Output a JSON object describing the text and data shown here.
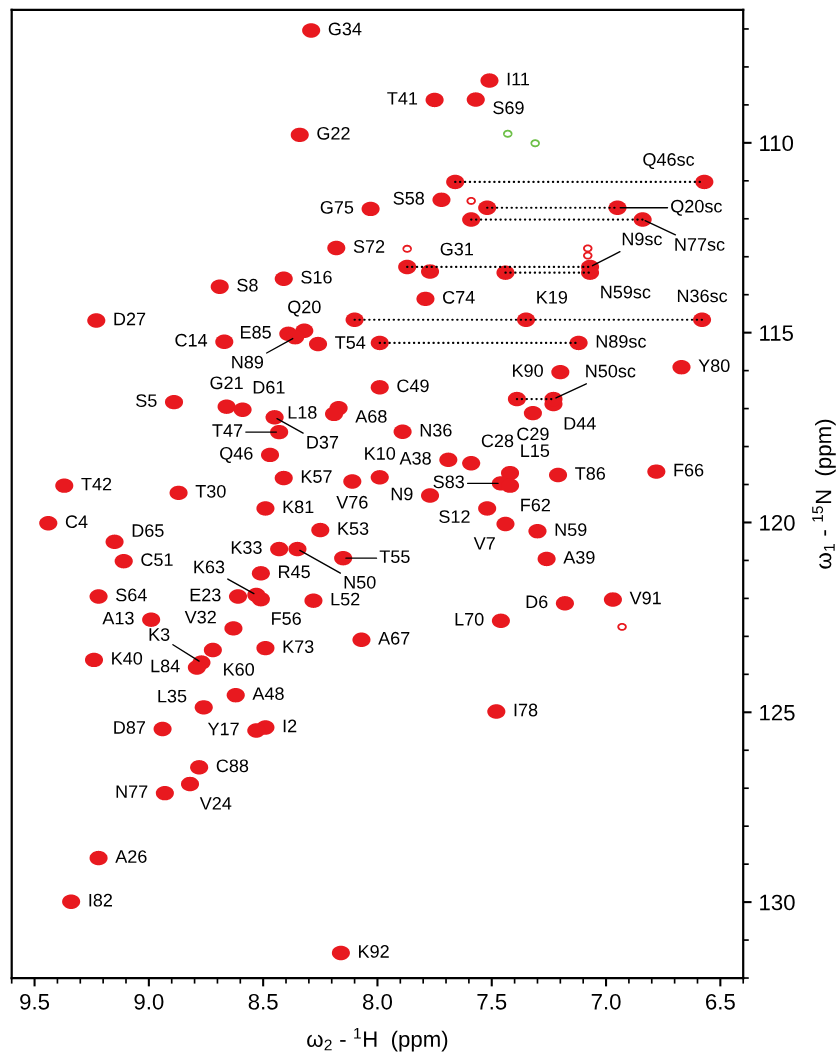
{
  "chart_data": {
    "type": "scatter",
    "xlabel": "ω$_{2}$ - $^{1}$H  (ppm)",
    "ylabel": "ω$_{1}$ - $^{15}$N  (ppm)",
    "xlim": [
      9.6,
      6.4
    ],
    "ylim": [
      132.0,
      106.5
    ],
    "xticks": [
      9.5,
      {
        "value": 9,
        "label": "9.0"
      },
      8.5,
      {
        "value": 8,
        "label": "8.0"
      },
      7.5,
      {
        "value": 7,
        "label": "7.0"
      },
      6.5
    ],
    "yticks": [
      110,
      115,
      120,
      125,
      130
    ],
    "marker": "circle",
    "series": [
      {
        "color": "#e8191f",
        "x": [
          8.29,
          7.51,
          7.75,
          7.57,
          8.34,
          7.72,
          8.03,
          8.18,
          7.77,
          8.69,
          8.41,
          7.79,
          9.23,
          7.35,
          8.39,
          8.32,
          8.36,
          8.26,
          8.67,
          6.67,
          7.2,
          7.99,
          8.89,
          8.66,
          8.59,
          8.45,
          8.43,
          8.17,
          8.19,
          7.89,
          7.23,
          7.32,
          8.47,
          7.69,
          7.59,
          7.42,
          7.46,
          7.42,
          7.21,
          6.78,
          9.37,
          8.41,
          8.11,
          7.99,
          8.87,
          7.77,
          8.49,
          7.52,
          9.44,
          7.44,
          7.3,
          8.25,
          9.15,
          8.43,
          8.35,
          9.11,
          8.15,
          7.26,
          8.51,
          8.53,
          8.61,
          8.51,
          9.22,
          8.28,
          7.18,
          6.97,
          8.99,
          8.63,
          7.46,
          8.07,
          8.49,
          8.72,
          8.77,
          8.79,
          9.24,
          8.62,
          8.76,
          7.48,
          8.94,
          8.49,
          8.53,
          8.78,
          8.82,
          8.93,
          9.22,
          9.34,
          8.16,
          7.66,
          6.57,
          7.52,
          6.95,
          7.59,
          6.84,
          7.87,
          7.07,
          7.44,
          7.07,
          8.1,
          6.58,
          7.99,
          7.12,
          7.39,
          7.23
        ],
        "values": [
          107.04,
          108.36,
          108.87,
          108.86,
          109.79,
          111.5,
          111.74,
          112.77,
          113.39,
          113.79,
          113.58,
          114.11,
          114.68,
          114.66,
          115.03,
          114.95,
          115.12,
          115.3,
          115.24,
          115.91,
          116.04,
          116.44,
          116.83,
          116.95,
          117.03,
          117.23,
          117.62,
          116.99,
          117.14,
          117.61,
          116.88,
          117.12,
          118.22,
          118.35,
          118.44,
          118.7,
          118.97,
          119.03,
          118.75,
          118.66,
          119.03,
          118.83,
          118.92,
          118.81,
          119.22,
          119.29,
          119.63,
          119.63,
          120.02,
          120.04,
          120.23,
          120.2,
          120.51,
          120.7,
          120.7,
          121.02,
          120.94,
          120.96,
          121.34,
          121.91,
          121.95,
          122.02,
          121.95,
          122.06,
          122.13,
          122.03,
          122.56,
          122.79,
          122.59,
          123.09,
          123.31,
          123.36,
          123.69,
          123.82,
          123.62,
          124.55,
          124.87,
          124.98,
          125.44,
          125.4,
          125.48,
          126.45,
          126.89,
          127.13,
          128.84,
          129.99,
          131.34,
          111.03,
          111.03,
          111.71,
          111.71,
          112.02,
          112.02,
          113.27,
          113.27,
          113.42,
          113.42,
          114.66,
          114.66,
          115.27,
          115.27,
          116.75,
          116.75
        ]
      },
      {
        "color": "#e8191f",
        "x": [
          7.87,
          7.59,
          7.08,
          7.08,
          6.93
        ],
        "values": [
          112.79,
          111.53,
          112.78,
          112.97,
          122.75
        ]
      },
      {
        "color": "#6cbf46",
        "x": [
          7.43,
          7.31
        ],
        "values": [
          109.76,
          110.01
        ]
      },
      {
        "type": "line",
        "color": "#000000",
        "line_style": "dotted",
        "marker": "none",
        "x": [
          7.66,
          6.57
        ],
        "values": [
          111.03,
          111.03
        ]
      },
      {
        "type": "line",
        "color": "#000000",
        "line_style": "dotted",
        "marker": "none",
        "x": [
          7.52,
          6.95
        ],
        "values": [
          111.71,
          111.71
        ]
      },
      {
        "type": "line",
        "color": "#000000",
        "line_style": "dotted",
        "marker": "none",
        "x": [
          7.59,
          6.84
        ],
        "values": [
          112.02,
          112.02
        ]
      },
      {
        "type": "line",
        "color": "#000000",
        "line_style": "dotted",
        "marker": "none",
        "x": [
          7.87,
          7.07
        ],
        "values": [
          113.27,
          113.27
        ]
      },
      {
        "type": "line",
        "color": "#000000",
        "line_style": "dotted",
        "marker": "none",
        "x": [
          7.44,
          7.07
        ],
        "values": [
          113.42,
          113.42
        ]
      },
      {
        "type": "line",
        "color": "#000000",
        "line_style": "dotted",
        "marker": "none",
        "x": [
          8.1,
          6.58
        ],
        "values": [
          114.66,
          114.66
        ]
      },
      {
        "type": "line",
        "color": "#000000",
        "line_style": "dotted",
        "marker": "none",
        "x": [
          7.99,
          7.12
        ],
        "values": [
          115.27,
          115.27
        ]
      },
      {
        "type": "line",
        "color": "#000000",
        "line_style": "dotted",
        "marker": "none",
        "x": [
          7.39,
          7.23
        ],
        "values": [
          116.75,
          116.75
        ]
      }
    ],
    "annotations": [
      {
        "text": "G34",
        "x": 8.29,
        "y": 107.04
      },
      {
        "text": "I11",
        "x": 7.51,
        "y": 108.36
      },
      {
        "text": "T41",
        "x": 7.75,
        "y": 108.87
      },
      {
        "text": "S69",
        "x": 7.57,
        "y": 108.86
      },
      {
        "text": "G22",
        "x": 8.34,
        "y": 109.79
      },
      {
        "text": "S58",
        "x": 7.72,
        "y": 111.5
      },
      {
        "text": "G75",
        "x": 8.03,
        "y": 111.74
      },
      {
        "text": "S72",
        "x": 8.18,
        "y": 112.77
      },
      {
        "text": "G31",
        "x": 7.77,
        "y": 113.39
      },
      {
        "text": "S8",
        "x": 8.69,
        "y": 113.79
      },
      {
        "text": "S16",
        "x": 8.41,
        "y": 113.58
      },
      {
        "text": "C74",
        "x": 7.79,
        "y": 114.11
      },
      {
        "text": "D27",
        "x": 9.23,
        "y": 114.68
      },
      {
        "text": "K19",
        "x": 7.35,
        "y": 114.66
      },
      {
        "text": "E85",
        "x": 8.39,
        "y": 115.03
      },
      {
        "text": "Q20",
        "x": 8.32,
        "y": 114.95
      },
      {
        "text": "N89",
        "x": 8.36,
        "y": 115.12
      },
      {
        "text": "T54",
        "x": 8.26,
        "y": 115.3
      },
      {
        "text": "C14",
        "x": 8.67,
        "y": 115.24
      },
      {
        "text": "Y80",
        "x": 6.67,
        "y": 115.91
      },
      {
        "text": "K90",
        "x": 7.2,
        "y": 116.04
      },
      {
        "text": "C49",
        "x": 7.99,
        "y": 116.44
      },
      {
        "text": "S5",
        "x": 8.89,
        "y": 116.83
      },
      {
        "text": "G21",
        "x": 8.66,
        "y": 116.95
      },
      {
        "text": "D61",
        "x": 8.59,
        "y": 117.03
      },
      {
        "text": "D37",
        "x": 8.45,
        "y": 117.23
      },
      {
        "text": "T47",
        "x": 8.43,
        "y": 117.62
      },
      {
        "text": "A68",
        "x": 8.17,
        "y": 116.99
      },
      {
        "text": "L18",
        "x": 8.19,
        "y": 117.14
      },
      {
        "text": "N36",
        "x": 7.89,
        "y": 117.61
      },
      {
        "text": "D44",
        "x": 7.23,
        "y": 116.88
      },
      {
        "text": "C29",
        "x": 7.32,
        "y": 117.12
      },
      {
        "text": "Q46",
        "x": 8.47,
        "y": 118.22
      },
      {
        "text": "A38",
        "x": 7.69,
        "y": 118.35
      },
      {
        "text": "C28",
        "x": 7.59,
        "y": 118.44
      },
      {
        "text": "L15",
        "x": 7.42,
        "y": 118.7
      },
      {
        "text": "S83",
        "x": 7.46,
        "y": 118.97
      },
      {
        "text": "F62",
        "x": 7.42,
        "y": 119.03
      },
      {
        "text": "T86",
        "x": 7.21,
        "y": 118.75
      },
      {
        "text": "F66",
        "x": 6.78,
        "y": 118.66
      },
      {
        "text": "T42",
        "x": 9.37,
        "y": 119.03
      },
      {
        "text": "K57",
        "x": 8.41,
        "y": 118.83
      },
      {
        "text": "V76",
        "x": 8.11,
        "y": 118.92
      },
      {
        "text": "K10",
        "x": 7.99,
        "y": 118.81
      },
      {
        "text": "T30",
        "x": 8.87,
        "y": 119.22
      },
      {
        "text": "N9",
        "x": 7.77,
        "y": 119.29
      },
      {
        "text": "K81",
        "x": 8.49,
        "y": 119.63
      },
      {
        "text": "S12",
        "x": 7.52,
        "y": 119.63
      },
      {
        "text": "C4",
        "x": 9.44,
        "y": 120.02
      },
      {
        "text": "V7",
        "x": 7.44,
        "y": 120.04
      },
      {
        "text": "N59",
        "x": 7.3,
        "y": 120.23
      },
      {
        "text": "K53",
        "x": 8.25,
        "y": 120.2
      },
      {
        "text": "D65",
        "x": 9.15,
        "y": 120.51
      },
      {
        "text": "K33",
        "x": 8.43,
        "y": 120.7
      },
      {
        "text": "N50",
        "x": 8.35,
        "y": 120.7
      },
      {
        "text": "C51",
        "x": 9.11,
        "y": 121.02
      },
      {
        "text": "T55",
        "x": 8.15,
        "y": 120.94
      },
      {
        "text": "A39",
        "x": 7.26,
        "y": 120.96
      },
      {
        "text": "R45",
        "x": 8.51,
        "y": 121.34
      },
      {
        "text": "K63",
        "x": 8.53,
        "y": 121.91
      },
      {
        "text": "E23",
        "x": 8.61,
        "y": 121.95
      },
      {
        "text": "F56",
        "x": 8.51,
        "y": 122.02
      },
      {
        "text": "S64",
        "x": 9.22,
        "y": 121.95
      },
      {
        "text": "L52",
        "x": 8.28,
        "y": 122.06
      },
      {
        "text": "D6",
        "x": 7.18,
        "y": 122.13
      },
      {
        "text": "V91",
        "x": 6.97,
        "y": 122.03
      },
      {
        "text": "A13",
        "x": 8.99,
        "y": 122.56
      },
      {
        "text": "V32",
        "x": 8.63,
        "y": 122.79
      },
      {
        "text": "L70",
        "x": 7.46,
        "y": 122.59
      },
      {
        "text": "A67",
        "x": 8.07,
        "y": 123.09
      },
      {
        "text": "K73",
        "x": 8.49,
        "y": 123.31
      },
      {
        "text": "K60",
        "x": 8.72,
        "y": 123.36
      },
      {
        "text": "K3",
        "x": 8.77,
        "y": 123.69
      },
      {
        "text": "L84",
        "x": 8.79,
        "y": 123.82
      },
      {
        "text": "K40",
        "x": 9.24,
        "y": 123.62
      },
      {
        "text": "A48",
        "x": 8.62,
        "y": 124.55
      },
      {
        "text": "L35",
        "x": 8.76,
        "y": 124.87
      },
      {
        "text": "I78",
        "x": 7.48,
        "y": 124.98
      },
      {
        "text": "D87",
        "x": 8.94,
        "y": 125.44
      },
      {
        "text": "I2",
        "x": 8.49,
        "y": 125.4
      },
      {
        "text": "Y17",
        "x": 8.53,
        "y": 125.48
      },
      {
        "text": "C88",
        "x": 8.78,
        "y": 126.45
      },
      {
        "text": "V24",
        "x": 8.82,
        "y": 126.89
      },
      {
        "text": "N77",
        "x": 8.93,
        "y": 127.13
      },
      {
        "text": "A26",
        "x": 9.22,
        "y": 128.84
      },
      {
        "text": "I82",
        "x": 9.34,
        "y": 129.99
      },
      {
        "text": "K92",
        "x": 8.16,
        "y": 131.34
      },
      {
        "text": "Q46sc",
        "x": 6.57,
        "y": 111.03
      },
      {
        "text": "Q20sc",
        "x": 6.95,
        "y": 111.71
      },
      {
        "text": "N77sc",
        "x": 6.84,
        "y": 112.02
      },
      {
        "text": "N9sc",
        "x": 7.07,
        "y": 113.27
      },
      {
        "text": "N59sc",
        "x": 7.07,
        "y": 113.42
      },
      {
        "text": "N36sc",
        "x": 6.58,
        "y": 114.66
      },
      {
        "text": "N89sc",
        "x": 7.12,
        "y": 115.27
      },
      {
        "text": "N50sc",
        "x": 7.23,
        "y": 116.75
      }
    ]
  }
}
